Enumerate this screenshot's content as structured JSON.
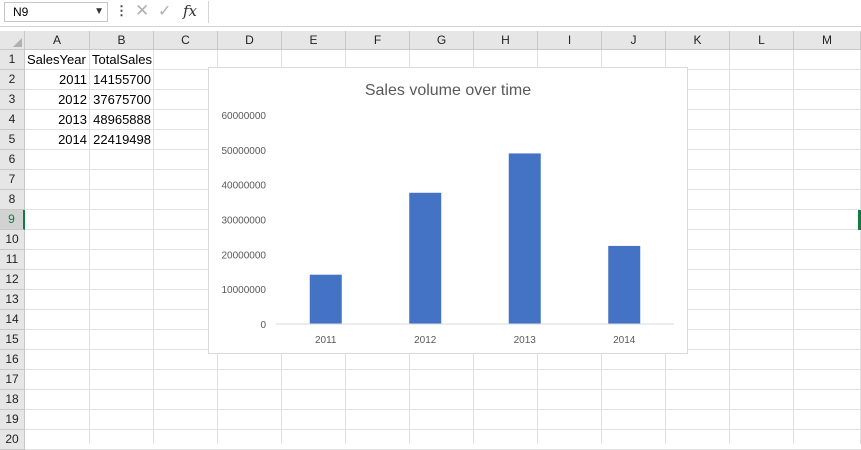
{
  "formula_bar": {
    "name_box": "N9",
    "formula": "",
    "name_box_arrow_icon": "chevron-down-icon",
    "options_icon": "vertical-dots-icon",
    "cancel_icon": "x-icon",
    "enter_icon": "check-icon",
    "fx_label": "fx"
  },
  "columns": [
    "A",
    "B",
    "C",
    "D",
    "E",
    "F",
    "G",
    "H",
    "I",
    "J",
    "K",
    "L",
    "M"
  ],
  "rows": [
    "1",
    "2",
    "3",
    "4",
    "5",
    "6",
    "7",
    "8",
    "9",
    "10",
    "11",
    "12",
    "13",
    "14",
    "15",
    "16",
    "17",
    "18",
    "19",
    "20"
  ],
  "selected_row": "9",
  "cells": {
    "A1": "SalesYear",
    "B1": "TotalSales",
    "A2": "2011",
    "B2": "14155700",
    "A3": "2012",
    "B3": "37675700",
    "A4": "2013",
    "B4": "48965888",
    "A5": "2014",
    "B5": "22419498"
  },
  "chart_data": {
    "type": "bar",
    "title": "Sales volume over time",
    "categories": [
      "2011",
      "2012",
      "2013",
      "2014"
    ],
    "values": [
      14155700,
      37675700,
      48965888,
      22419498
    ],
    "y_ticks": [
      "0",
      "10000000",
      "20000000",
      "30000000",
      "40000000",
      "50000000",
      "60000000"
    ],
    "ylim": [
      0,
      60000000
    ],
    "xlabel": "",
    "ylabel": "",
    "bar_color": "#4472c4",
    "grid": false,
    "legend": false
  }
}
